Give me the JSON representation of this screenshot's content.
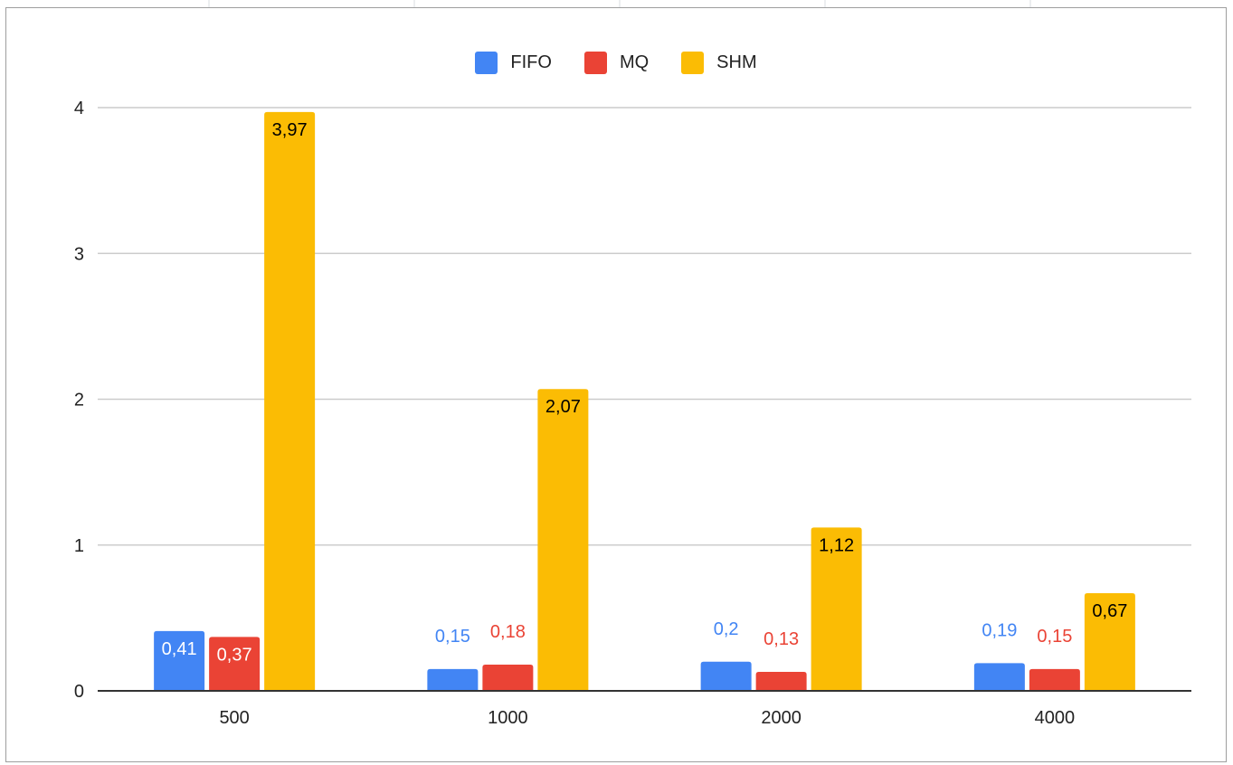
{
  "chart_data": {
    "type": "bar",
    "categories": [
      "500",
      "1000",
      "2000",
      "4000"
    ],
    "series": [
      {
        "name": "FIFO",
        "values": [
          0.41,
          0.15,
          0.2,
          0.19
        ],
        "labels": [
          "0,41",
          "0,15",
          "0,2",
          "0,19"
        ],
        "color": "#4285f4"
      },
      {
        "name": "MQ",
        "values": [
          0.37,
          0.18,
          0.13,
          0.15
        ],
        "labels": [
          "0,37",
          "0,18",
          "0,13",
          "0,15"
        ],
        "color": "#ea4335"
      },
      {
        "name": "SHM",
        "values": [
          3.97,
          2.07,
          1.12,
          0.67
        ],
        "labels": [
          "3,97",
          "2,07",
          "1,12",
          "0,67"
        ],
        "color": "#fbbc04"
      }
    ],
    "yticks": [
      "0",
      "1",
      "2",
      "3",
      "4"
    ],
    "ylim": [
      0,
      4
    ],
    "grid": true,
    "legend_position": "top-center",
    "title": "",
    "xlabel": "",
    "ylabel": ""
  }
}
